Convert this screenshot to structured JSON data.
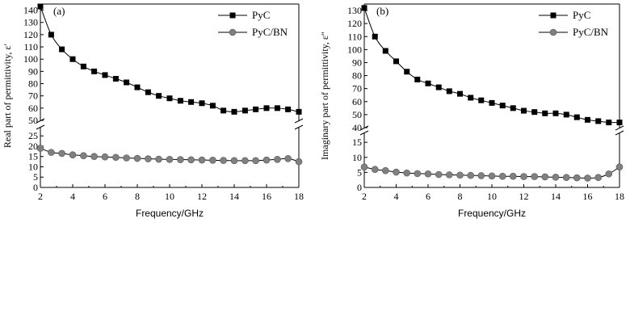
{
  "chart_data": [
    {
      "type": "line",
      "panel_label": "(a)",
      "xlabel": "Frequency/GHz",
      "ylabel": "Real part of permittivity, ε′",
      "xlim": [
        2,
        18
      ],
      "x_ticks": [
        2,
        4,
        6,
        8,
        10,
        12,
        14,
        16,
        18
      ],
      "y_axis_broken": true,
      "ylim_lower": [
        0,
        29
      ],
      "ylim_upper": [
        50,
        145
      ],
      "y_ticks_lower": [
        0,
        5,
        10,
        15,
        20,
        25
      ],
      "y_ticks_upper": [
        50,
        60,
        70,
        80,
        90,
        100,
        110,
        120,
        130,
        140
      ],
      "legend_position": "top-right",
      "series": [
        {
          "name": "PyC",
          "marker": "square",
          "color": "#000000",
          "x": [
            2,
            2.67,
            3.33,
            4,
            4.67,
            5.33,
            6,
            6.67,
            7.33,
            8,
            8.67,
            9.33,
            10,
            10.67,
            11.33,
            12,
            12.67,
            13.33,
            14,
            14.67,
            15.33,
            16,
            16.67,
            17.33,
            18
          ],
          "values": [
            143,
            120,
            108,
            100,
            94,
            90,
            87,
            84,
            81,
            77,
            73,
            70,
            68,
            66,
            65,
            64,
            62,
            58,
            57,
            58,
            59,
            60,
            60,
            59,
            57
          ]
        },
        {
          "name": "PyC/BN",
          "marker": "circle",
          "color": "#808080",
          "x": [
            2,
            2.67,
            3.33,
            4,
            4.67,
            5.33,
            6,
            6.67,
            7.33,
            8,
            8.67,
            9.33,
            10,
            10.67,
            11.33,
            12,
            12.67,
            13.33,
            14,
            14.67,
            15.33,
            16,
            16.67,
            17.33,
            18
          ],
          "values": [
            19,
            17,
            16.5,
            15.8,
            15.4,
            15,
            14.8,
            14.6,
            14.3,
            14.1,
            13.9,
            13.7,
            13.6,
            13.5,
            13.4,
            13.3,
            13.2,
            13.1,
            13,
            13,
            13,
            13.3,
            13.6,
            14,
            12.5
          ]
        }
      ]
    },
    {
      "type": "line",
      "panel_label": "(b)",
      "xlabel": "Frequency/GHz",
      "ylabel": "Imaginary part of permittivity, ε″",
      "xlim": [
        2,
        18
      ],
      "x_ticks": [
        2,
        4,
        6,
        8,
        10,
        12,
        14,
        16,
        18
      ],
      "y_axis_broken": true,
      "ylim_lower": [
        0,
        18
      ],
      "ylim_upper": [
        40,
        135
      ],
      "y_ticks_lower": [
        0,
        5,
        10,
        15
      ],
      "y_ticks_upper": [
        40,
        50,
        60,
        70,
        80,
        90,
        100,
        110,
        120,
        130
      ],
      "legend_position": "top-right",
      "series": [
        {
          "name": "PyC",
          "marker": "square",
          "color": "#000000",
          "x": [
            2,
            2.67,
            3.33,
            4,
            4.67,
            5.33,
            6,
            6.67,
            7.33,
            8,
            8.67,
            9.33,
            10,
            10.67,
            11.33,
            12,
            12.67,
            13.33,
            14,
            14.67,
            15.33,
            16,
            16.67,
            17.33,
            18
          ],
          "values": [
            132,
            110,
            99,
            91,
            83,
            77,
            74,
            71,
            68,
            66,
            63,
            61,
            59,
            57,
            55,
            53,
            52,
            51,
            51,
            50,
            48,
            46,
            45,
            44,
            44
          ]
        },
        {
          "name": "PyC/BN",
          "marker": "circle",
          "color": "#808080",
          "x": [
            2,
            2.67,
            3.33,
            4,
            4.67,
            5.33,
            6,
            6.67,
            7.33,
            8,
            8.67,
            9.33,
            10,
            10.67,
            11.33,
            12,
            12.67,
            13.33,
            14,
            14.67,
            15.33,
            16,
            16.67,
            17.33,
            18
          ],
          "values": [
            6.8,
            6,
            5.6,
            5.1,
            4.8,
            4.6,
            4.5,
            4.3,
            4.2,
            4.1,
            4,
            3.9,
            3.8,
            3.7,
            3.7,
            3.6,
            3.6,
            3.5,
            3.4,
            3.3,
            3.2,
            3.1,
            3.3,
            4.5,
            6.8
          ]
        }
      ]
    }
  ]
}
